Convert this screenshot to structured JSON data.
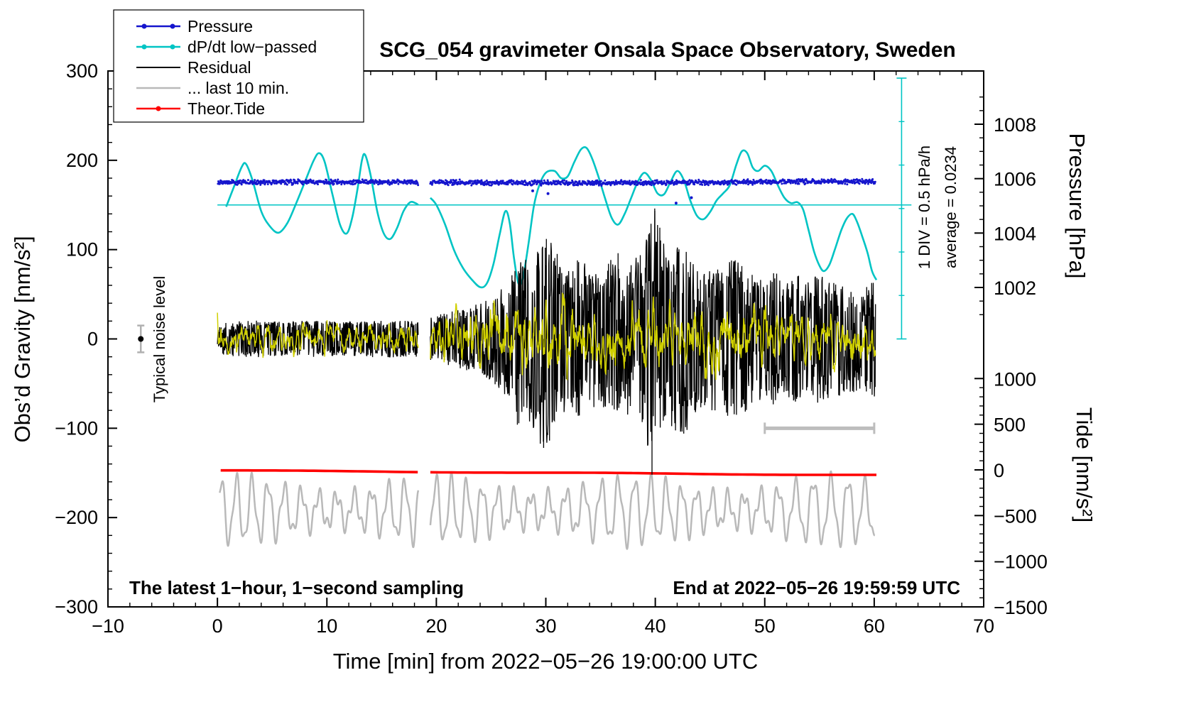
{
  "title": "SCG_054 gravimeter Onsala Space Observatory, Sweden",
  "footer": {
    "left": "The latest 1−hour, 1−second sampling",
    "right": "End at 2022−05−26 19:59:59 UTC"
  },
  "annotations": {
    "div_scale": "1 DIV = 0.5 hPa/h",
    "average": "average = 0.0234",
    "noise_level": "Typical noise level"
  },
  "legend": {
    "items": [
      {
        "label": "Pressure",
        "color": "#1515cd",
        "marker": "dots"
      },
      {
        "label": "dP/dt low−passed",
        "color": "#00c4c4",
        "marker": "dots"
      },
      {
        "label": "Residual",
        "color": "#000000",
        "marker": "line"
      },
      {
        "label": "... last 10 min.",
        "color": "#b9b9b9",
        "marker": "line"
      },
      {
        "label": "Theor.Tide",
        "color": "#ff0000",
        "marker": "dot"
      }
    ]
  },
  "chart_data": {
    "type": "line",
    "title": "SCG_054 gravimeter Onsala Space Observatory, Sweden",
    "seed": 20220526,
    "data_gap_min": [
      18.35,
      19.45
    ],
    "x_axis": {
      "label": "Time [min] from 2022−05−26 19:00:00 UTC",
      "min": -10,
      "max": 70,
      "major_step": 10,
      "minor_step": 2
    },
    "y_left": {
      "label": "Obs’d Gravity [nm/s²]",
      "min": -300,
      "max": 300,
      "major_step": 100,
      "minor_step": 20
    },
    "y_pressure": {
      "label": "Pressure [hPa]",
      "ticks": [
        1002,
        1004,
        1006,
        1008
      ],
      "minor_step": 0.5,
      "range_shown": [
        1001,
        1009
      ]
    },
    "y_tide": {
      "label": "Tide [nm/s²]",
      "ticks": [
        -1500,
        -1000,
        -500,
        0,
        500,
        1000
      ],
      "minor_step": 100
    },
    "markers": {
      "noise_level": {
        "t": -7,
        "value": 0,
        "error": 15,
        "color": "#b0b0b0"
      },
      "last10_bar": {
        "t_from": 50,
        "t_to": 60,
        "value": -100,
        "color": "#bdbdbd"
      }
    },
    "series": {
      "pressure": {
        "name": "Pressure",
        "axis": "hPa",
        "color": "#1515cd",
        "base": 1005.82,
        "noise": 0.11,
        "outliers": [
          [
            28.8,
            1005.55
          ],
          [
            30.2,
            1005.45
          ],
          [
            41.9,
            1005.1
          ],
          [
            43.3,
            1005.3
          ]
        ]
      },
      "dpdt": {
        "name": "dP/dt low-passed",
        "color": "#00c4c4",
        "ref_line": {
          "value": 150,
          "t_from": 0,
          "t_to": 63.4
        },
        "scale_bar": {
          "t": 62.5,
          "v_bottom": 0,
          "v_top": 292,
          "divisions": 6
        },
        "points": [
          [
            0.8,
            148
          ],
          [
            1.5,
            170
          ],
          [
            2.2,
            192
          ],
          [
            2.6,
            196
          ],
          [
            3.2,
            178
          ],
          [
            4,
            143
          ],
          [
            4.8,
            126
          ],
          [
            5.6,
            119
          ],
          [
            6.4,
            130
          ],
          [
            7.2,
            152
          ],
          [
            8,
            176
          ],
          [
            8.8,
            200
          ],
          [
            9.3,
            208
          ],
          [
            9.8,
            198
          ],
          [
            10.5,
            162
          ],
          [
            11.2,
            128
          ],
          [
            11.8,
            118
          ],
          [
            12.3,
            135
          ],
          [
            12.8,
            168
          ],
          [
            13.2,
            200
          ],
          [
            13.5,
            206
          ],
          [
            14,
            183
          ],
          [
            14.6,
            143
          ],
          [
            15.2,
            118
          ],
          [
            15.8,
            112
          ],
          [
            16.4,
            124
          ],
          [
            17,
            143
          ],
          [
            17.6,
            153
          ],
          [
            18.1,
            152
          ],
          [
            18.35,
            150
          ],
          [
            19.45,
            158
          ],
          [
            20,
            150
          ],
          [
            20.8,
            128
          ],
          [
            21.6,
            100
          ],
          [
            22.4,
            80
          ],
          [
            23.2,
            67
          ],
          [
            24,
            58
          ],
          [
            24.6,
            62
          ],
          [
            25.2,
            83
          ],
          [
            25.8,
            118
          ],
          [
            26.3,
            143
          ],
          [
            26.7,
            130
          ],
          [
            27.1,
            90
          ],
          [
            27.5,
            62
          ],
          [
            27.9,
            68
          ],
          [
            28.4,
            105
          ],
          [
            28.9,
            148
          ],
          [
            29.4,
            172
          ],
          [
            30,
            186
          ],
          [
            30.8,
            188
          ],
          [
            31.4,
            180
          ],
          [
            32,
            182
          ],
          [
            32.6,
            198
          ],
          [
            33.2,
            212
          ],
          [
            33.7,
            214
          ],
          [
            34.2,
            203
          ],
          [
            34.8,
            182
          ],
          [
            35.4,
            158
          ],
          [
            36,
            136
          ],
          [
            36.6,
            128
          ],
          [
            37.2,
            140
          ],
          [
            37.8,
            158
          ],
          [
            38.4,
            176
          ],
          [
            39,
            186
          ],
          [
            39.6,
            178
          ],
          [
            40.2,
            163
          ],
          [
            40.8,
            162
          ],
          [
            41.4,
            176
          ],
          [
            42,
            188
          ],
          [
            42.6,
            178
          ],
          [
            43.2,
            155
          ],
          [
            43.8,
            138
          ],
          [
            44.4,
            134
          ],
          [
            45,
            142
          ],
          [
            45.6,
            155
          ],
          [
            46.2,
            163
          ],
          [
            46.8,
            172
          ],
          [
            47.4,
            195
          ],
          [
            47.9,
            210
          ],
          [
            48.4,
            208
          ],
          [
            48.9,
            192
          ],
          [
            49.4,
            188
          ],
          [
            50,
            194
          ],
          [
            50.6,
            188
          ],
          [
            51.2,
            172
          ],
          [
            51.8,
            158
          ],
          [
            52.4,
            152
          ],
          [
            53,
            153
          ],
          [
            53.5,
            145
          ],
          [
            54,
            122
          ],
          [
            54.5,
            98
          ],
          [
            55,
            82
          ],
          [
            55.4,
            76
          ],
          [
            55.9,
            83
          ],
          [
            56.4,
            100
          ],
          [
            57,
            122
          ],
          [
            57.5,
            135
          ],
          [
            58,
            140
          ],
          [
            58.4,
            132
          ],
          [
            58.9,
            115
          ],
          [
            59.4,
            96
          ],
          [
            59.8,
            76
          ],
          [
            60.2,
            66
          ]
        ]
      },
      "residual": {
        "name": "Residual",
        "color": "#000000",
        "envelope": [
          [
            0,
            18
          ],
          [
            3,
            21
          ],
          [
            6,
            19
          ],
          [
            9,
            21
          ],
          [
            12,
            19
          ],
          [
            15,
            21
          ],
          [
            18.35,
            20
          ],
          [
            19.45,
            24
          ],
          [
            21,
            30
          ],
          [
            22.5,
            34
          ],
          [
            24,
            40
          ],
          [
            25,
            48
          ],
          [
            26,
            58
          ],
          [
            26.8,
            72
          ],
          [
            27.5,
            95
          ],
          [
            28.3,
            88
          ],
          [
            29,
            105
          ],
          [
            29.8,
            128
          ],
          [
            30.4,
            115
          ],
          [
            31.2,
            92
          ],
          [
            32,
            84
          ],
          [
            33,
            90
          ],
          [
            34,
            80
          ],
          [
            35,
            72
          ],
          [
            36,
            92
          ],
          [
            37,
            82
          ],
          [
            38,
            88
          ],
          [
            39,
            110
          ],
          [
            39.8,
            150
          ],
          [
            40.4,
            132
          ],
          [
            41,
            96
          ],
          [
            42,
            104
          ],
          [
            42.8,
            108
          ],
          [
            43.6,
            84
          ],
          [
            44.4,
            74
          ],
          [
            45.2,
            84
          ],
          [
            46,
            74
          ],
          [
            47,
            94
          ],
          [
            48,
            84
          ],
          [
            49,
            74
          ],
          [
            50,
            64
          ],
          [
            51,
            76
          ],
          [
            52,
            66
          ],
          [
            53,
            72
          ],
          [
            54,
            64
          ],
          [
            55,
            76
          ],
          [
            56,
            64
          ],
          [
            57,
            66
          ],
          [
            58,
            60
          ],
          [
            59,
            56
          ],
          [
            60,
            68
          ]
        ],
        "feature_spikes": [
          [
            27.4,
            -96
          ],
          [
            29.8,
            -122
          ],
          [
            30.05,
            112
          ],
          [
            36.6,
            96
          ],
          [
            39.7,
            -152
          ],
          [
            39.95,
            146
          ],
          [
            42.6,
            -106
          ],
          [
            47.3,
            88
          ]
        ]
      },
      "residual_lowpass": {
        "name": "Residual low-passed",
        "color": "#d0d000",
        "envelope": [
          [
            0,
            13
          ],
          [
            6,
            14
          ],
          [
            12,
            13
          ],
          [
            18.35,
            13
          ],
          [
            19.45,
            18
          ],
          [
            21,
            24
          ],
          [
            23,
            28
          ],
          [
            25,
            30
          ],
          [
            27,
            34
          ],
          [
            29,
            36
          ],
          [
            31,
            33
          ],
          [
            33,
            30
          ],
          [
            35,
            31
          ],
          [
            37,
            33
          ],
          [
            39,
            35
          ],
          [
            41,
            33
          ],
          [
            43,
            31
          ],
          [
            45,
            30
          ],
          [
            47,
            30
          ],
          [
            49,
            29
          ],
          [
            51,
            28
          ],
          [
            53,
            27
          ],
          [
            55,
            26
          ],
          [
            57,
            25
          ],
          [
            59,
            25
          ],
          [
            60,
            25
          ]
        ]
      },
      "theor_tide": {
        "name": "Theor.Tide",
        "color": "#ff0000",
        "t_from": 0.3,
        "t_to": 60.2,
        "start": -147.2,
        "slope": -0.088
      },
      "noise_band": {
        "name": "last 10 min band",
        "color": "#b9b9b9",
        "t_from": 0.2,
        "t_to": 60.05,
        "base": -192,
        "amp_base": 26,
        "amp_mod": 9,
        "period": 1.5,
        "amp2": 9
      }
    }
  }
}
